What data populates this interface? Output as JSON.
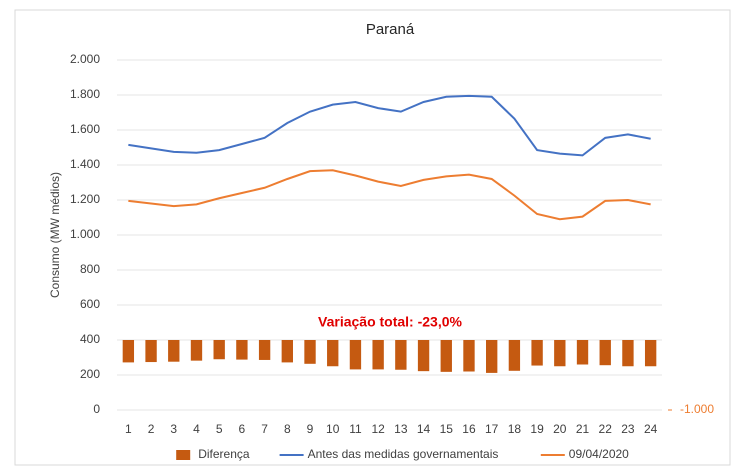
{
  "chart_data": {
    "type": "line",
    "title": "Paraná",
    "y_label": "Consumo (MW médios)",
    "annotation": "Variação total: -23,0%",
    "categories": [
      "1",
      "2",
      "3",
      "4",
      "5",
      "6",
      "7",
      "8",
      "9",
      "10",
      "11",
      "12",
      "13",
      "14",
      "15",
      "16",
      "17",
      "18",
      "19",
      "20",
      "21",
      "22",
      "23",
      "24"
    ],
    "series": [
      {
        "name": "Diferença",
        "type": "bar",
        "axis": "y2",
        "color": "#c55a11",
        "values": [
          -320,
          -315,
          -310,
          -295,
          -275,
          -280,
          -285,
          -320,
          -340,
          -375,
          -420,
          -420,
          -425,
          -445,
          -455,
          -450,
          -470,
          -440,
          -365,
          -375,
          -350,
          -360,
          -375,
          -375
        ]
      },
      {
        "name": "Antes das medidas governamentais",
        "type": "line",
        "color": "#4472c4",
        "values": [
          1515,
          1495,
          1475,
          1470,
          1485,
          1520,
          1555,
          1640,
          1705,
          1745,
          1760,
          1725,
          1705,
          1760,
          1790,
          1795,
          1790,
          1665,
          1485,
          1465,
          1455,
          1555,
          1575,
          1550
        ]
      },
      {
        "name": "09/04/2020",
        "type": "line",
        "color": "#ed7d31",
        "values": [
          1195,
          1180,
          1165,
          1175,
          1210,
          1240,
          1270,
          1320,
          1365,
          1370,
          1340,
          1305,
          1280,
          1315,
          1335,
          1345,
          1320,
          1225,
          1120,
          1090,
          1105,
          1195,
          1200,
          1175
        ]
      }
    ],
    "ylim": [
      0,
      2000
    ],
    "yticks": [
      0,
      200,
      400,
      600,
      800,
      {
        "value": 1000,
        "label": "1.000"
      },
      {
        "value": 1200,
        "label": "1.200"
      },
      {
        "value": 1400,
        "label": "1.400"
      },
      {
        "value": 1600,
        "label": "1.600"
      },
      {
        "value": 1800,
        "label": "1.800"
      },
      {
        "value": 2000,
        "label": "2.000"
      }
    ],
    "y2lim": [
      -1000,
      4000
    ],
    "y2ticks": [
      {
        "value": -1000,
        "label": "-1.000"
      }
    ],
    "grid": true,
    "legend": "bottom"
  }
}
